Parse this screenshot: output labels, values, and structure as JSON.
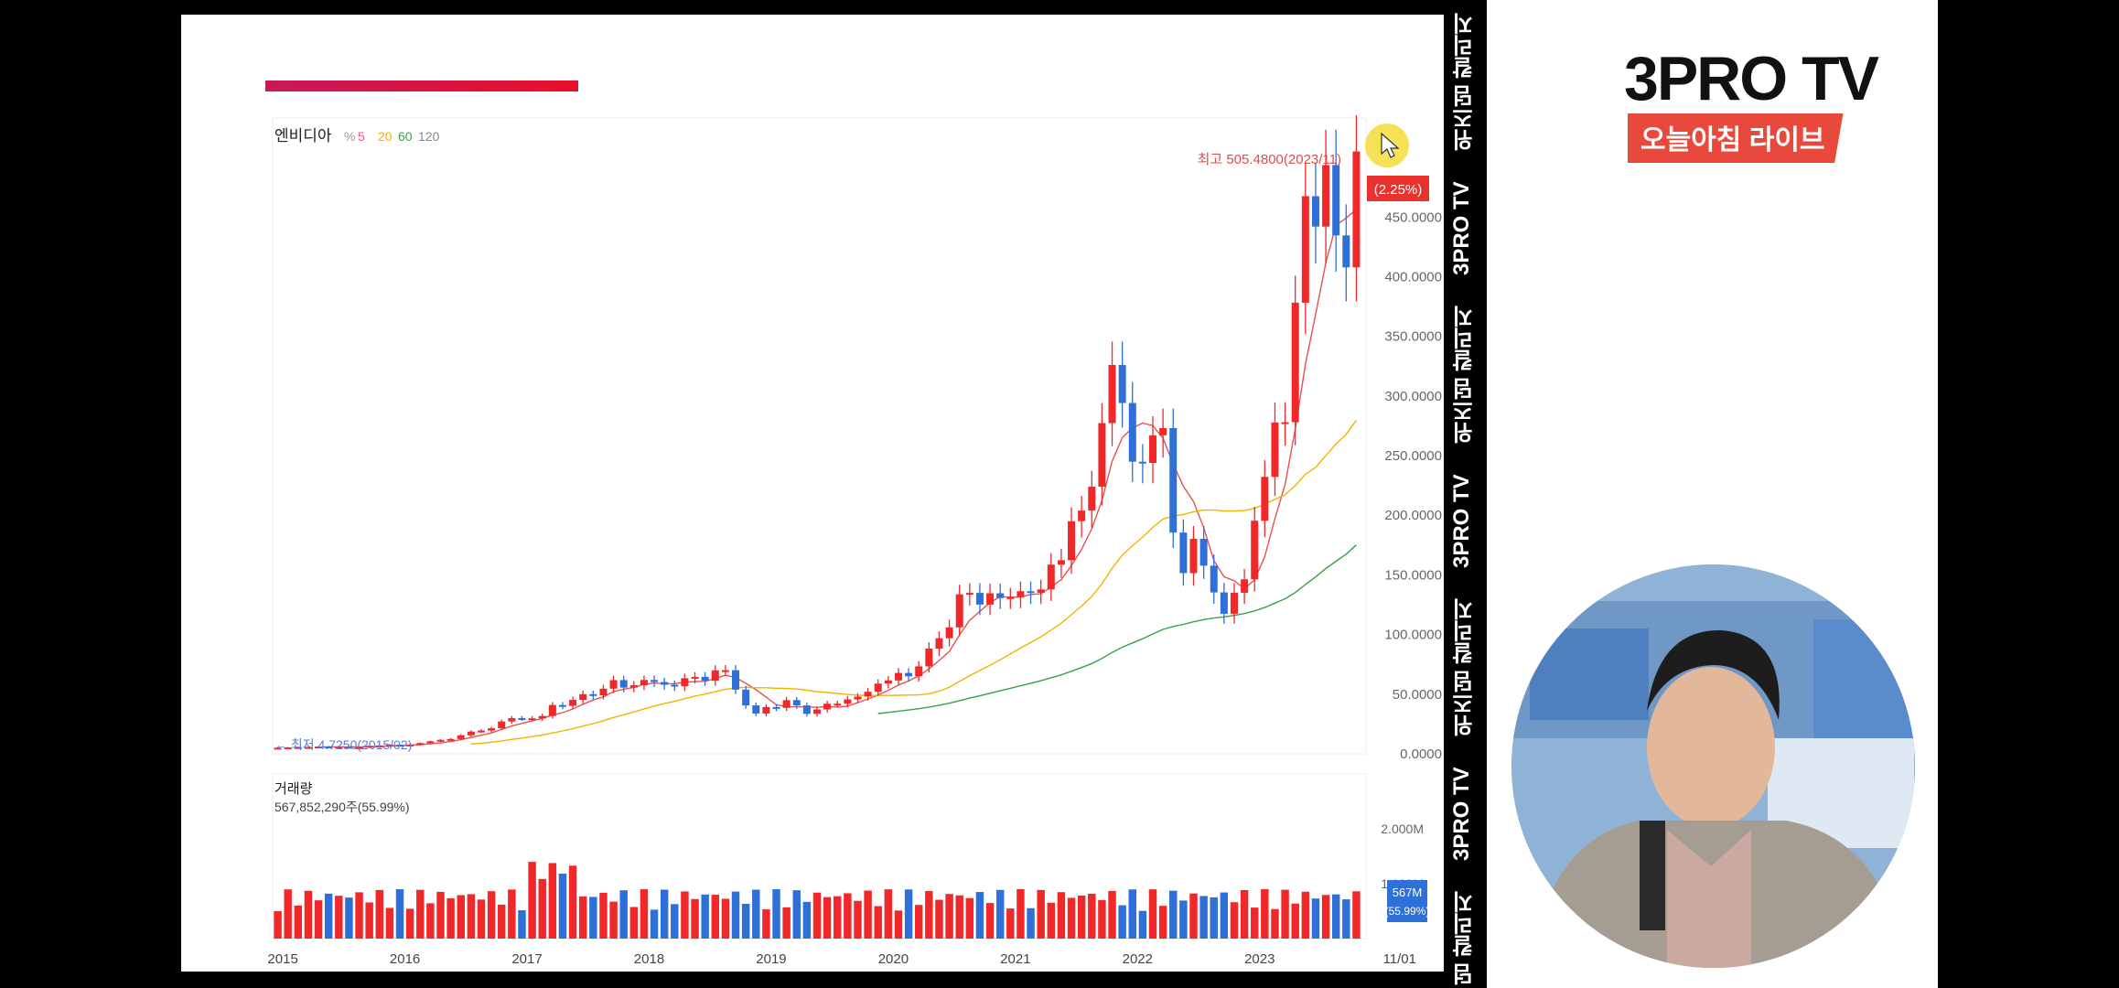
{
  "chart": {
    "stock_name": "엔비디아",
    "ma_legend": [
      "5",
      "20",
      "60",
      "120"
    ],
    "high_annotation": "최고 505.4800(2023/11)",
    "low_annotation": "최저 4.7250(2015/02)",
    "current_change": "(2.25%)",
    "volume_title": "거래량",
    "volume_value": "567,852,290주(55.99%)",
    "volume_badge_1": "567M",
    "volume_badge_2": "(55.99%)",
    "end_date_label": "11/01"
  },
  "chart_data": {
    "type": "candlestick",
    "period": "monthly",
    "x_ticks": [
      "2015",
      "2016",
      "2017",
      "2018",
      "2019",
      "2020",
      "2021",
      "2022",
      "2023"
    ],
    "y_ticks": [
      "450.0000",
      "400.0000",
      "350.0000",
      "300.0000",
      "250.0000",
      "200.0000",
      "150.0000",
      "100.0000",
      "50.0000",
      "0.0000"
    ],
    "ylim": [
      0,
      520
    ],
    "volume_ticks": [
      "2.000M",
      "1.000M"
    ],
    "volume_ylim": [
      0,
      2500000000
    ],
    "close": [
      5.1,
      5.4,
      5.6,
      5.7,
      6.1,
      5.9,
      5.9,
      5.4,
      5.5,
      6.7,
      7.0,
      7.6,
      6.9,
      7.7,
      9.0,
      10.5,
      11.7,
      12.4,
      15.5,
      18.6,
      19.5,
      21.4,
      27.1,
      29.9,
      29.8,
      29.8,
      31.7,
      40.9,
      40.2,
      45.2,
      50.0,
      49.0,
      54.6,
      61.8,
      55.5,
      57.5,
      61.9,
      60.2,
      57.9,
      56.6,
      63.4,
      64.5,
      61.3,
      70.0,
      70.1,
      53.8,
      40.6,
      33.8,
      39.2,
      38.5,
      45.0,
      40.6,
      33.5,
      37.2,
      42.0,
      42.0,
      45.6,
      48.0,
      52.0,
      58.9,
      61.5,
      67.8,
      65.0,
      73.3,
      88.2,
      96.9,
      106.0,
      133.7,
      134.9,
      125.1,
      134.6,
      130.6,
      131.3,
      136.3,
      135.0,
      137.8,
      158.6,
      162.3,
      195.0,
      203.9,
      223.9,
      277.3,
      326.0,
      294.1,
      244.9,
      243.9,
      267.0,
      273.1,
      185.5,
      151.5,
      180.2,
      157.7,
      135.3,
      117.4,
      135.0,
      146.3,
      195.4,
      232.2,
      277.8,
      278.0,
      378.2,
      467.5,
      442.0,
      493.6,
      434.6,
      407.8,
      505.0
    ],
    "series": [
      {
        "name": "5",
        "color": "#e85050"
      },
      {
        "name": "20",
        "color": "#f0b400"
      },
      {
        "name": "60",
        "color": "#3aa04a"
      },
      {
        "name": "120",
        "color": "#777777"
      }
    ],
    "up_color": "#f0282a",
    "down_color": "#2f6fd8"
  },
  "logo": {
    "title": "3PRO TV",
    "subtitle": "오늘아침 라이브"
  },
  "ticker": [
    "위즈덤 칼리지",
    "3PRO TV",
    "위즈덤 칼리지",
    "3PRO TV",
    "위즈덤 칼리지",
    "3PRO TV",
    "위즈덤 칼리지"
  ]
}
